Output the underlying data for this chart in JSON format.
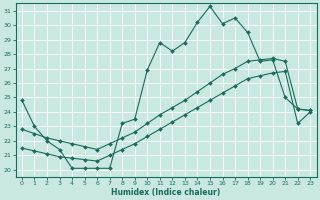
{
  "xlabel": "Humidex (Indice chaleur)",
  "background_color": "#c8e8e0",
  "grid_color": "#b0d8d0",
  "line_color": "#1a6b5a",
  "xlim": [
    -0.5,
    23.5
  ],
  "ylim": [
    19.5,
    31.5
  ],
  "xticks": [
    0,
    1,
    2,
    3,
    4,
    5,
    6,
    7,
    8,
    9,
    10,
    11,
    12,
    13,
    14,
    15,
    16,
    17,
    18,
    19,
    20,
    21,
    22,
    23
  ],
  "yticks": [
    20,
    21,
    22,
    23,
    24,
    25,
    26,
    27,
    28,
    29,
    30,
    31
  ],
  "line1_x": [
    0,
    1,
    2,
    3,
    4,
    5,
    6,
    7,
    8,
    9,
    10,
    11,
    12,
    13,
    14,
    15,
    16,
    17,
    18,
    19,
    20,
    21,
    22,
    23
  ],
  "line1_y": [
    24.8,
    23.0,
    22.0,
    21.4,
    20.1,
    20.1,
    20.1,
    20.1,
    23.2,
    23.5,
    26.9,
    28.8,
    28.2,
    28.8,
    30.2,
    31.3,
    30.1,
    30.5,
    29.5,
    27.5,
    27.6,
    25.0,
    24.2,
    24.1
  ],
  "line2_x": [
    0,
    1,
    2,
    3,
    4,
    5,
    6,
    7,
    8,
    9,
    10,
    11,
    12,
    13,
    14,
    15,
    16,
    17,
    18,
    19,
    20,
    21,
    22,
    23
  ],
  "line2_y": [
    22.8,
    22.5,
    22.2,
    22.0,
    21.8,
    21.6,
    21.4,
    21.8,
    22.2,
    22.6,
    23.2,
    23.8,
    24.3,
    24.8,
    25.4,
    26.0,
    26.6,
    27.0,
    27.5,
    27.6,
    27.7,
    27.5,
    24.2,
    24.1
  ],
  "line3_x": [
    0,
    1,
    2,
    3,
    4,
    5,
    6,
    7,
    8,
    9,
    10,
    11,
    12,
    13,
    14,
    15,
    16,
    17,
    18,
    19,
    20,
    21,
    22,
    23
  ],
  "line3_y": [
    21.5,
    21.3,
    21.1,
    20.9,
    20.8,
    20.7,
    20.6,
    21.0,
    21.4,
    21.8,
    22.3,
    22.8,
    23.3,
    23.8,
    24.3,
    24.8,
    25.3,
    25.8,
    26.3,
    26.5,
    26.7,
    26.8,
    23.2,
    24.0
  ]
}
